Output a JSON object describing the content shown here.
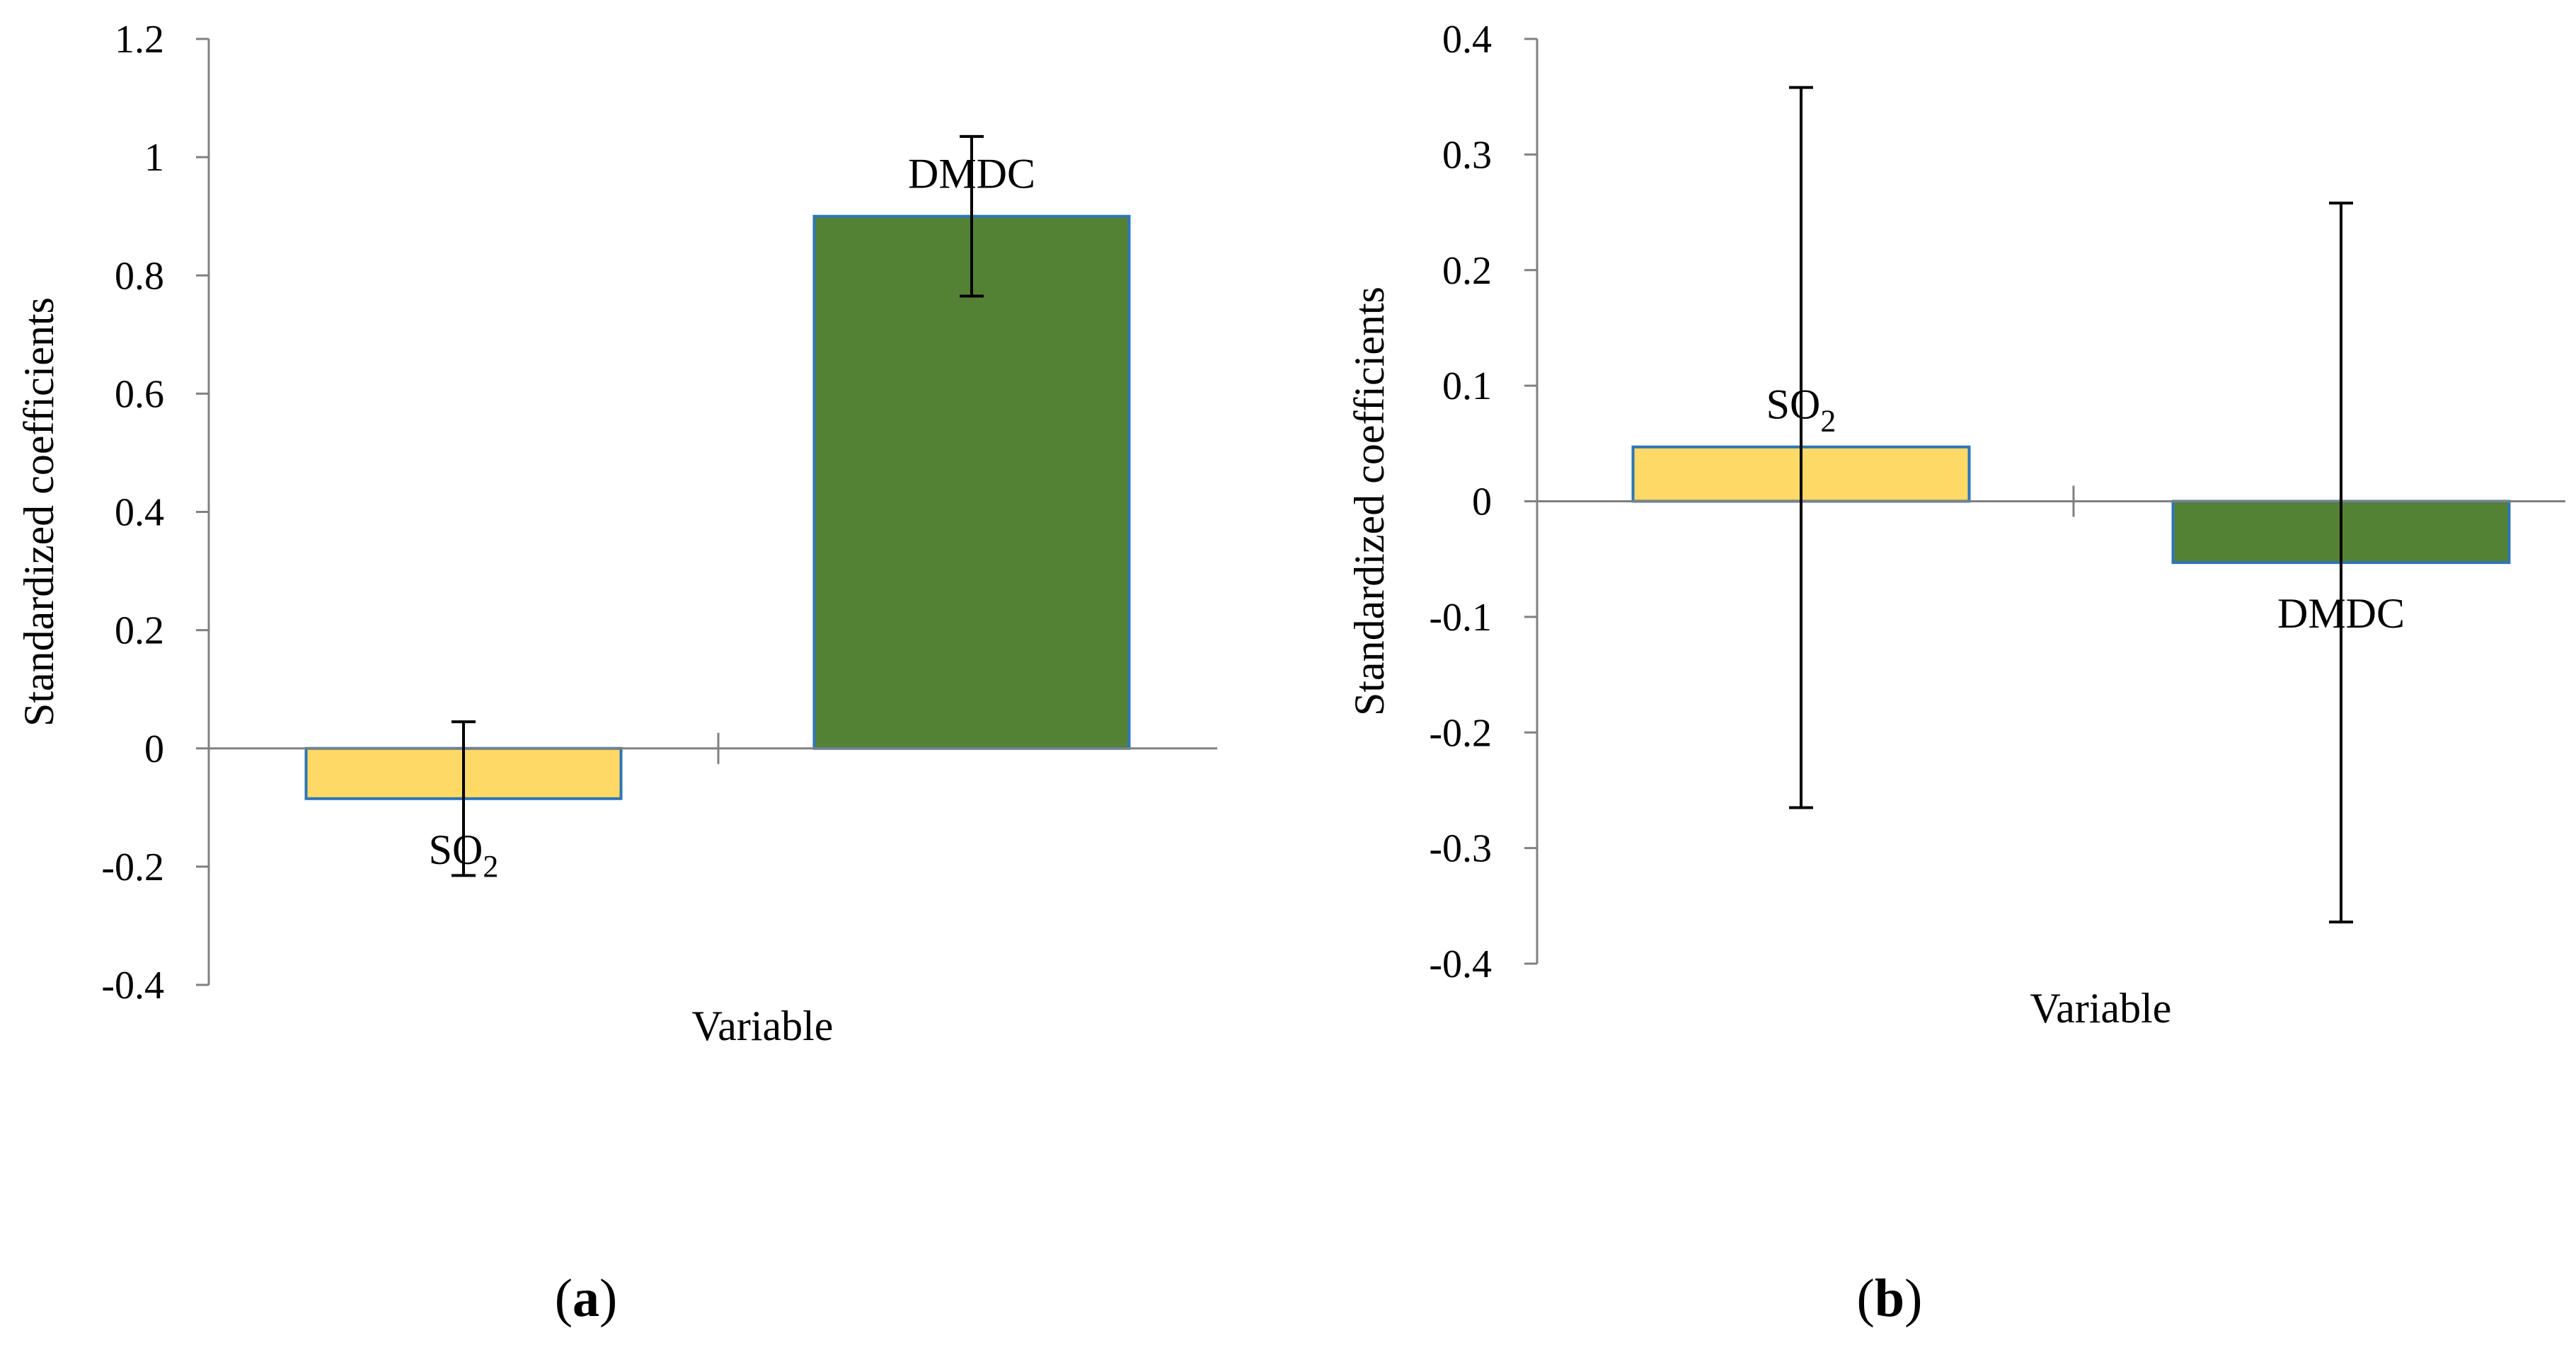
{
  "chart_data": [
    {
      "panel_label": "(a)",
      "panel_letter": "a",
      "type": "bar",
      "xlabel": "Variable",
      "ylabel": "Standardized coefficients",
      "ylim": [
        -0.4,
        1.2
      ],
      "y_ticks": [
        -0.4,
        -0.2,
        0,
        0.2,
        0.4,
        0.6,
        0.8,
        1,
        1.2
      ],
      "y_tick_labels": [
        "-0.4",
        "-0.2",
        "0",
        "0.2",
        "0.4",
        "0.6",
        "0.8",
        "1",
        "1.2"
      ],
      "categories": [
        "SO2",
        "DMDC"
      ],
      "bars": [
        {
          "name": "SO2",
          "label_main": "SO",
          "label_sub": "2",
          "value": -0.085,
          "err_low": -0.215,
          "err_high": 0.045,
          "color": "#FFD966",
          "label_side": "below"
        },
        {
          "name": "DMDC",
          "label_main": "DMDC",
          "label_sub": "",
          "value": 0.9,
          "err_low": 0.765,
          "err_high": 1.035,
          "color": "#548235",
          "label_side": "above"
        }
      ]
    },
    {
      "panel_label": "(b)",
      "panel_letter": "b",
      "type": "bar",
      "xlabel": "Variable",
      "ylabel": "Standardized coefficients",
      "ylim": [
        -0.4,
        0.4
      ],
      "y_ticks": [
        -0.4,
        -0.3,
        -0.2,
        -0.1,
        0,
        0.1,
        0.2,
        0.3,
        0.4
      ],
      "y_tick_labels": [
        "-0.4",
        "-0.3",
        "-0.2",
        "-0.1",
        "0",
        "0.1",
        "0.2",
        "0.3",
        "0.4"
      ],
      "categories": [
        "SO2",
        "DMDC"
      ],
      "bars": [
        {
          "name": "SO2",
          "label_main": "SO",
          "label_sub": "2",
          "value": 0.047,
          "err_low": -0.265,
          "err_high": 0.358,
          "color": "#FFD966",
          "label_side": "above"
        },
        {
          "name": "DMDC",
          "label_main": "DMDC",
          "label_sub": "",
          "value": -0.053,
          "err_low": -0.364,
          "err_high": 0.258,
          "color": "#548235",
          "label_side": "below"
        }
      ]
    }
  ],
  "colors": {
    "bar_outline": "#2E75B6",
    "axis": "#808080",
    "error_bar": "#000000"
  }
}
